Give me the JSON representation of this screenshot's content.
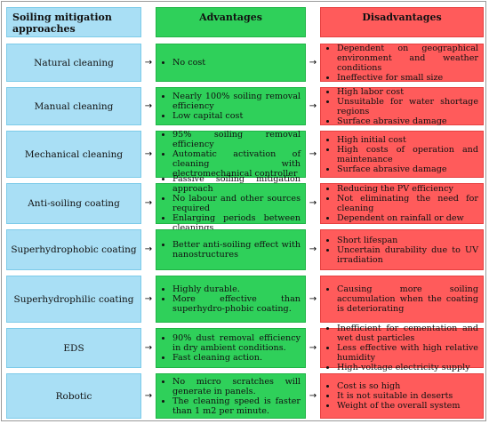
{
  "headers": {
    "approaches": "Soiling mitigation approaches",
    "advantages": "Advantages",
    "disadvantages": "Disadvantages"
  },
  "arrow_glyph": "→",
  "rows": [
    {
      "name": "Natural cleaning",
      "advantages": [
        "No cost"
      ],
      "disadvantages": [
        "Dependent on geographical environment and weather conditions",
        "Ineffective for small size"
      ]
    },
    {
      "name": "Manual cleaning",
      "advantages": [
        "Nearly 100% soiling removal efficiency",
        "Low capital cost"
      ],
      "disadvantages": [
        "High labor cost",
        "Unsuitable for water shortage regions",
        "Surface abrasive damage"
      ]
    },
    {
      "name": "Mechanical cleaning",
      "advantages": [
        "95% soiling removal efficiency",
        "Automatic activation of cleaning with electromechanical controller"
      ],
      "disadvantages": [
        "High initial cost",
        "High costs of operation and maintenance",
        "Surface abrasive damage"
      ]
    },
    {
      "name": "Anti-soiling coating",
      "advantages": [
        "Passive soiling mitigation approach",
        "No labour and other sources required",
        "Enlarging periods between cleanings"
      ],
      "disadvantages": [
        "Reducing the PV efficiency",
        "Not eliminating the need for cleaning",
        "Dependent on rainfall or dew"
      ]
    },
    {
      "name": "Superhydrophobic coating",
      "advantages": [
        "Better anti-soiling effect with nanostructures"
      ],
      "disadvantages": [
        "Short lifespan",
        "Uncertain durability due to UV irradiation"
      ]
    },
    {
      "name": "Superhydrophilic coating",
      "advantages": [
        "Highly durable.",
        "More effective than superhydro-phobic coating."
      ],
      "disadvantages": [
        "Causing more soiling accumulation when the coating is deteriorating"
      ]
    },
    {
      "name": "EDS",
      "advantages": [
        "90% dust removal efficiency in dry ambient conditions.",
        "Fast cleaning action."
      ],
      "disadvantages": [
        "Inefficient for cementation and wet dust particles",
        "Less effective with high relative humidity",
        "High-voltage electricity supply"
      ]
    },
    {
      "name": "Robotic",
      "advantages": [
        "No micro scratches will generate in panels.",
        "The cleaning speed is faster than 1 m2 per minute."
      ],
      "disadvantages": [
        "Cost is so high",
        "It is not suitable in deserts",
        "Weight of the overall system"
      ]
    }
  ]
}
